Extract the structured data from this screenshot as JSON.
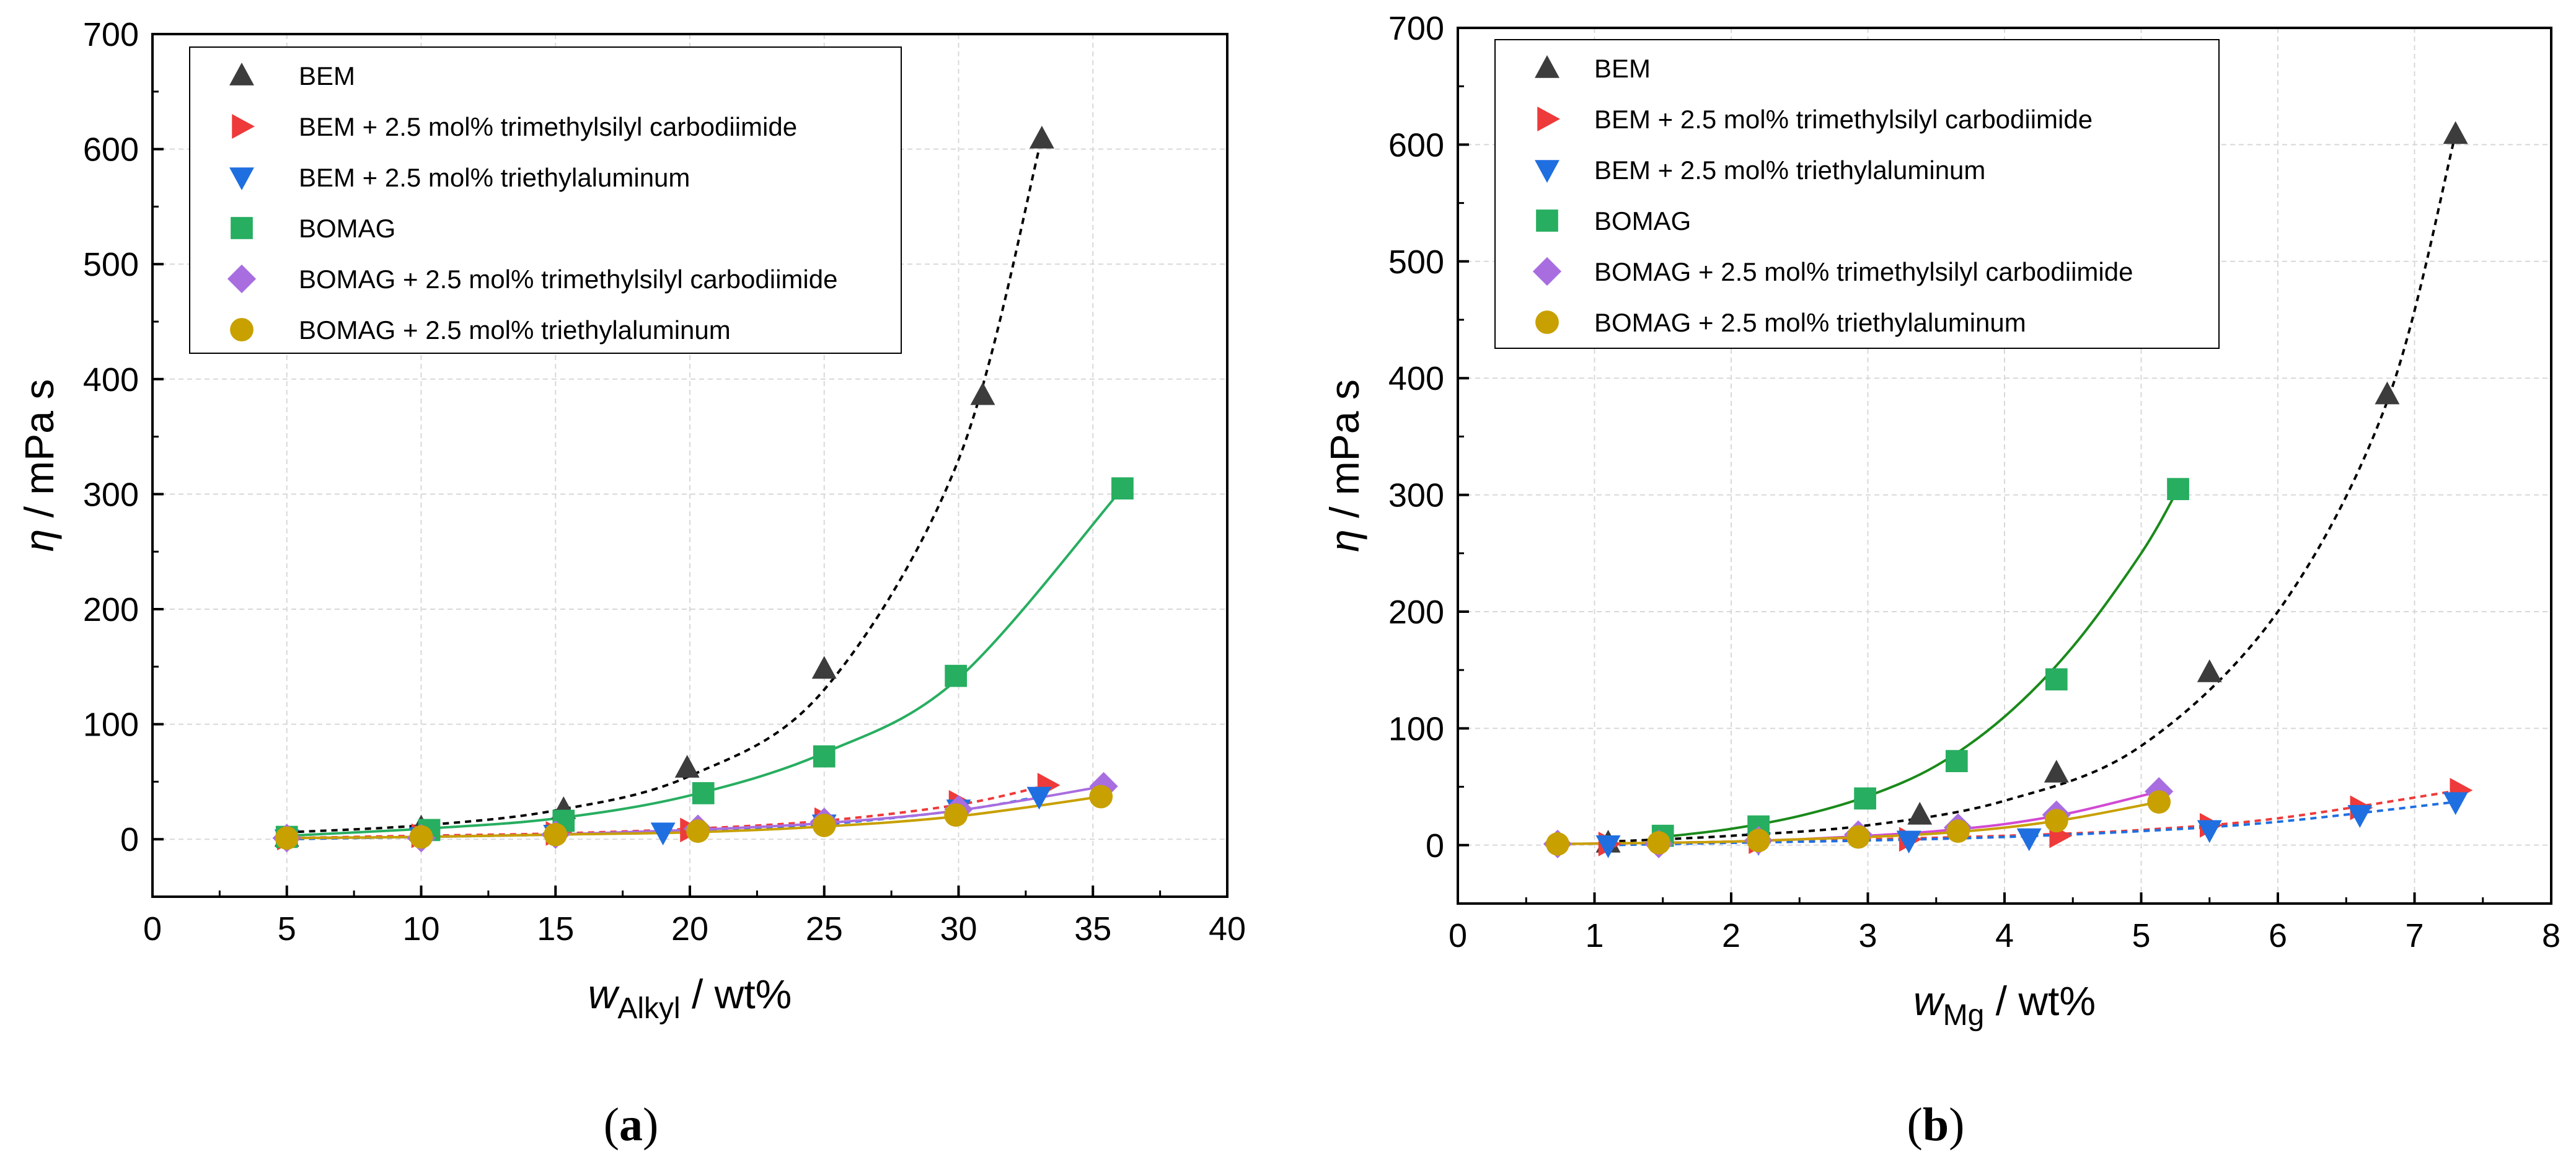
{
  "chart_data": [
    {
      "type": "scatter",
      "panel_label": "(a)",
      "xlabel_var": "w",
      "xlabel_sub": "Alkyl",
      "xlabel_unit": " / wt%",
      "ylabel_var": "η",
      "ylabel_unit": " / mPa s",
      "xlim": [
        0,
        40
      ],
      "ylim": [
        -50,
        700
      ],
      "xticks": [
        0,
        5,
        10,
        15,
        20,
        25,
        30,
        35,
        40
      ],
      "yticks": [
        0,
        100,
        200,
        300,
        400,
        500,
        600,
        700
      ],
      "grid": true,
      "legend_position": "top-left",
      "series": [
        {
          "name": "BEM",
          "marker": "triangle-up",
          "color": "#3c3c3c",
          "fit_color": "#000000",
          "fit_style": "dashed",
          "x": [
            5,
            10,
            15.3,
            19.9,
            25,
            30.9,
            33.1
          ],
          "y": [
            2,
            10,
            26,
            62,
            148,
            386,
            609
          ],
          "fit_x": [
            5,
            10,
            15,
            20,
            25,
            30,
            33.1
          ],
          "fit_y": [
            6,
            12,
            25,
            55,
            130,
            330,
            610
          ]
        },
        {
          "name": "BEM + 2.5 mol% trimethylsilyl carbodiimide",
          "marker": "triangle-right",
          "color": "#ee3a3a",
          "fit_color": "#ee3a3a",
          "fit_style": "dashed",
          "x": [
            5,
            10,
            15,
            20,
            25,
            30,
            33.3
          ],
          "y": [
            1,
            3,
            5,
            8,
            17,
            32,
            47
          ],
          "fit_x": [
            5,
            10,
            15,
            20,
            25,
            30,
            33.3
          ],
          "fit_y": [
            1,
            3,
            5,
            9,
            16,
            30,
            47
          ]
        },
        {
          "name": "BEM + 2.5 mol% triethylaluminum",
          "marker": "triangle-down",
          "color": "#1f6fe0",
          "fit_color": "#1f6fe0",
          "fit_style": "dashed",
          "x": [
            5,
            10,
            15,
            19,
            25,
            30,
            33
          ],
          "y": [
            0,
            2,
            4,
            6,
            13,
            26,
            37
          ],
          "fit_x": [
            5,
            10,
            15,
            20,
            25,
            30,
            33
          ],
          "fit_y": [
            0,
            2,
            4,
            7,
            13,
            25,
            37
          ]
        },
        {
          "name": "BOMAG",
          "marker": "square",
          "color": "#27ae60",
          "fit_color": "#27ae60",
          "fit_style": "solid",
          "x": [
            5,
            10.3,
            15.3,
            20.5,
            25,
            29.9,
            36.1
          ],
          "y": [
            2,
            8,
            16,
            40,
            72,
            142,
            305
          ],
          "fit_x": [
            5,
            10,
            15,
            20,
            25,
            30,
            36.1
          ],
          "fit_y": [
            3,
            9,
            18,
            38,
            75,
            140,
            305
          ]
        },
        {
          "name": "BOMAG + 2.5 mol% trimethylsilyl carbodiimide",
          "marker": "diamond",
          "color": "#a86ee0",
          "fit_color": "#a86ee0",
          "fit_style": "solid",
          "x": [
            5,
            10,
            15,
            20.3,
            25,
            30,
            35.4
          ],
          "y": [
            1,
            1,
            4,
            9,
            15,
            26,
            46
          ],
          "fit_x": [
            5,
            10,
            15,
            20,
            25,
            30,
            35.4
          ],
          "fit_y": [
            1,
            2,
            4,
            8,
            14,
            25,
            46
          ]
        },
        {
          "name": "BOMAG + 2.5 mol% triethylaluminum",
          "marker": "circle",
          "color": "#c8a000",
          "fit_color": "#c8a000",
          "fit_style": "solid",
          "x": [
            5,
            10,
            15,
            20.3,
            25,
            29.9,
            35.3
          ],
          "y": [
            1,
            2,
            4,
            7,
            12,
            21,
            37
          ],
          "fit_x": [
            5,
            10,
            15,
            20,
            25,
            30,
            35.3
          ],
          "fit_y": [
            1,
            2,
            4,
            6,
            11,
            20,
            37
          ]
        }
      ]
    },
    {
      "type": "scatter",
      "panel_label": "(b)",
      "xlabel_var": "w",
      "xlabel_sub": "Mg",
      "xlabel_unit": " / wt%",
      "ylabel_var": "η",
      "ylabel_unit": " / mPa s",
      "xlim": [
        0,
        8
      ],
      "ylim": [
        -50,
        700
      ],
      "xticks": [
        0,
        1,
        2,
        3,
        4,
        5,
        6,
        7,
        8
      ],
      "yticks": [
        0,
        100,
        200,
        300,
        400,
        500,
        600,
        700
      ],
      "grid": true,
      "legend_position": "top-left",
      "series": [
        {
          "name": "BEM",
          "marker": "triangle-up",
          "color": "#3c3c3c",
          "fit_color": "#000000",
          "fit_style": "dashed",
          "x": [
            1.1,
            2.2,
            3.38,
            4.38,
            5.5,
            6.8,
            7.3
          ],
          "y": [
            2,
            10,
            26,
            62,
            148,
            386,
            609
          ],
          "fit_x": [
            1.1,
            2,
            3,
            4,
            5,
            6,
            6.8,
            7.3
          ],
          "fit_y": [
            3,
            8,
            17,
            38,
            85,
            200,
            380,
            609
          ]
        },
        {
          "name": "BEM + 2.5 mol% trimethylsilyl carbodiimide",
          "marker": "triangle-right",
          "color": "#ee3a3a",
          "fit_color": "#ee3a3a",
          "fit_style": "dashed",
          "x": [
            1.1,
            2.2,
            3.3,
            4.4,
            5.5,
            6.6,
            7.33
          ],
          "y": [
            1,
            3,
            5,
            8,
            17,
            32,
            47
          ],
          "fit_x": [
            1.1,
            2,
            3,
            4,
            5,
            6,
            7.33
          ],
          "fit_y": [
            1,
            3,
            5,
            8,
            13,
            23,
            47
          ]
        },
        {
          "name": "BEM + 2.5 mol% triethylaluminum",
          "marker": "triangle-down",
          "color": "#1f6fe0",
          "fit_color": "#1f6fe0",
          "fit_style": "dashed",
          "x": [
            1.1,
            2.2,
            3.3,
            4.18,
            5.5,
            6.6,
            7.3
          ],
          "y": [
            0,
            2,
            4,
            6,
            13,
            26,
            37
          ],
          "fit_x": [
            1.1,
            2,
            3,
            4,
            5,
            6,
            7.3
          ],
          "fit_y": [
            0,
            2,
            4,
            7,
            12,
            20,
            37
          ]
        },
        {
          "name": "BOMAG",
          "marker": "square",
          "color": "#27ae60",
          "fit_color": "#1a8a1a",
          "fit_style": "solid",
          "x": [
            1.5,
            2.2,
            2.98,
            3.65,
            4.38,
            5.27
          ],
          "y": [
            8,
            16,
            40,
            72,
            142,
            305
          ],
          "fit_x": [
            1.5,
            2,
            2.5,
            3,
            3.5,
            4,
            4.5,
            5,
            5.27
          ],
          "fit_y": [
            7,
            14,
            25,
            42,
            68,
            110,
            170,
            250,
            305
          ]
        },
        {
          "name": "BOMAG + 2.5 mol% trimethylsilyl carbodiimide",
          "marker": "diamond",
          "color": "#a86ee0",
          "fit_color": "#d24ad2",
          "fit_style": "solid",
          "x": [
            0.73,
            1.47,
            2.2,
            2.93,
            3.66,
            4.38,
            5.13
          ],
          "y": [
            1,
            1,
            4,
            9,
            15,
            26,
            46
          ],
          "fit_x": [
            0.73,
            1.5,
            2,
            2.5,
            3,
            3.5,
            4,
            4.5,
            5.13
          ],
          "fit_y": [
            1,
            2,
            3,
            5,
            8,
            12,
            18,
            28,
            46
          ]
        },
        {
          "name": "BOMAG + 2.5 mol% triethylaluminum",
          "marker": "circle",
          "color": "#c8a000",
          "fit_color": "#c8a000",
          "fit_style": "solid",
          "x": [
            0.73,
            1.47,
            2.2,
            2.93,
            3.66,
            4.38,
            5.13
          ],
          "y": [
            1,
            2,
            4,
            7,
            12,
            21,
            37
          ],
          "fit_x": [
            0.73,
            1.5,
            2,
            2.5,
            3,
            3.5,
            4,
            4.5,
            5.13
          ],
          "fit_y": [
            1,
            2,
            3,
            5,
            7,
            10,
            15,
            23,
            37
          ]
        }
      ]
    }
  ]
}
